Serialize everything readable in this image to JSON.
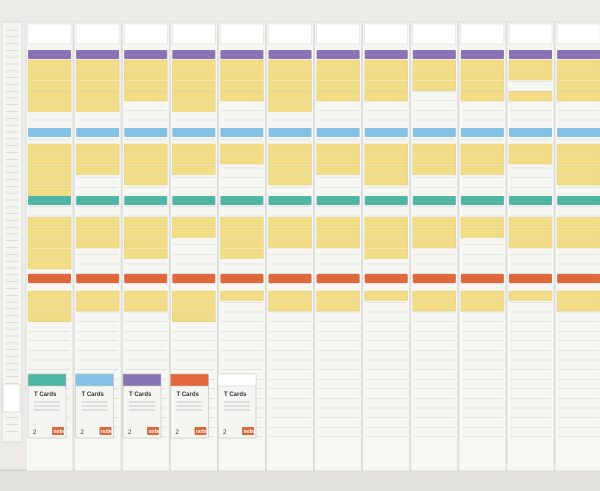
{
  "scene": {
    "subject": "planning-board",
    "columns": 12,
    "card_colors": {
      "white": "#ffffff",
      "purple": "#8a73b4",
      "blue": "#83c2e6",
      "teal": "#4fb6a6",
      "orange": "#e0673a",
      "yellow": "#f3dc86",
      "slot": "#e7e6e2",
      "frame": "#d9d8d4"
    },
    "card_packs": [
      {
        "title": "T Cards",
        "count": "2",
        "brand": "nobo",
        "color": "#4fb6a6"
      },
      {
        "title": "T Cards",
        "count": "2",
        "brand": "nobo",
        "color": "#83c2e6"
      },
      {
        "title": "T Cards",
        "count": "2",
        "brand": "nobo",
        "color": "#8a73b4"
      },
      {
        "title": "T Cards",
        "count": "2",
        "brand": "nobo",
        "color": "#e0673a"
      },
      {
        "title": "T Cards",
        "count": "2",
        "brand": "nobo",
        "color": "#ffffff"
      }
    ],
    "yellow_rows": [
      [
        5,
        6,
        7,
        8,
        9,
        13,
        14,
        15,
        16,
        17,
        20,
        21,
        22,
        23,
        24,
        27,
        28,
        29
      ],
      [
        5,
        6,
        7,
        8,
        9,
        13,
        14,
        15,
        20,
        21,
        22,
        27,
        28
      ],
      [
        5,
        6,
        7,
        8,
        13,
        14,
        15,
        16,
        20,
        21,
        22,
        23,
        27,
        28
      ],
      [
        5,
        6,
        7,
        8,
        9,
        13,
        14,
        15,
        20,
        21,
        27,
        28,
        29
      ],
      [
        5,
        6,
        7,
        8,
        13,
        14,
        20,
        21,
        22,
        23,
        27
      ],
      [
        5,
        6,
        7,
        8,
        9,
        13,
        14,
        15,
        16,
        20,
        21,
        22,
        27,
        28
      ],
      [
        5,
        6,
        7,
        8,
        13,
        14,
        15,
        20,
        21,
        22,
        27,
        28
      ],
      [
        5,
        6,
        7,
        8,
        13,
        14,
        15,
        16,
        20,
        21,
        22,
        23,
        27
      ],
      [
        5,
        6,
        7,
        13,
        14,
        15,
        20,
        21,
        22,
        27,
        28
      ],
      [
        5,
        6,
        7,
        8,
        13,
        14,
        15,
        20,
        21,
        27,
        28
      ],
      [
        5,
        6,
        8,
        13,
        14,
        20,
        21,
        22,
        27
      ],
      [
        5,
        6,
        7,
        8,
        13,
        14,
        15,
        16,
        20,
        21,
        22,
        27,
        28
      ]
    ]
  }
}
